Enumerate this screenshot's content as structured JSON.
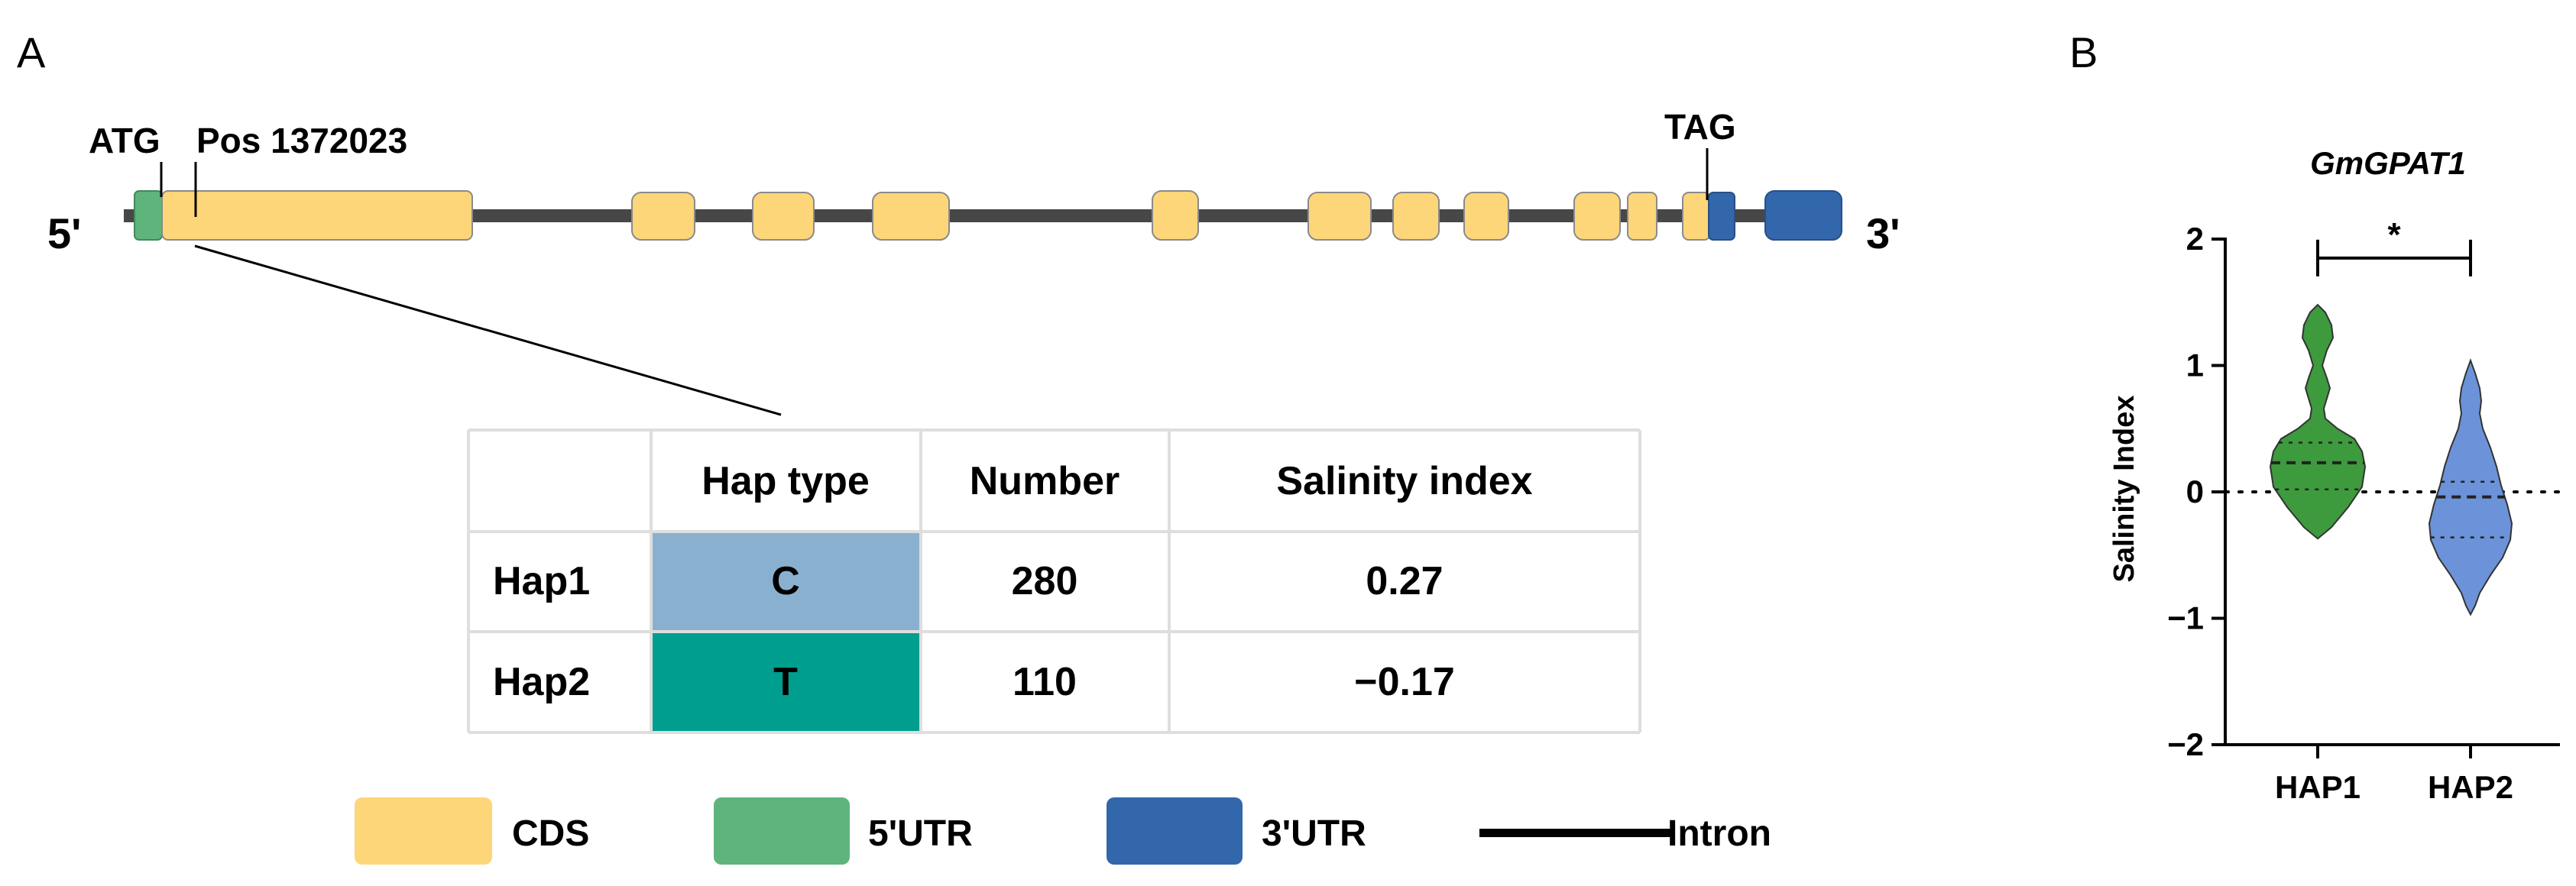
{
  "panel_labels": {
    "a": "A",
    "b": "B"
  },
  "gene": {
    "five_prime": "5'",
    "three_prime": "3'",
    "start_codon": "ATG",
    "stop_codon": "TAG",
    "snp_position": "Pos 1372023"
  },
  "haplotype_table": {
    "headers": [
      "",
      "Hap type",
      "Number",
      "Salinity index"
    ],
    "rows": [
      {
        "hap": "Hap1",
        "allele": "C",
        "number": "280",
        "salinity_index": "0.27"
      },
      {
        "hap": "Hap2",
        "allele": "T",
        "number": "110",
        "salinity_index": "−0.17"
      }
    ]
  },
  "legend": {
    "cds": "CDS",
    "utr5": "5'UTR",
    "utr3": "3'UTR",
    "intron": "Intron"
  },
  "colors": {
    "cds": "#fdd67a",
    "utr5": "#5fb47c",
    "utr3": "#3267ab",
    "intron": "#474747",
    "hap1_cell": "#8ab0d0",
    "hap2_cell": "#009e8e",
    "hap1_violin": "#3d9a3d",
    "hap2_violin": "#6c93d9"
  },
  "chart_data": {
    "type": "violin",
    "title": "GmGPAT1",
    "xlabel": "",
    "ylabel": "Salinity Index",
    "categories": [
      "HAP1",
      "HAP2"
    ],
    "ylim": [
      -2,
      2
    ],
    "yticks": [
      2,
      1,
      0,
      -1,
      -2
    ],
    "ytick_labels": [
      "2",
      "1",
      "0",
      "−1",
      "−2"
    ],
    "reference_line": 0,
    "significance": {
      "between": [
        "HAP1",
        "HAP2"
      ],
      "label": "*"
    },
    "series": [
      {
        "category": "HAP1",
        "min": -0.37,
        "max": 1.48,
        "q1": 0.02,
        "median": 0.23,
        "q3": 0.39
      },
      {
        "category": "HAP2",
        "min": -0.97,
        "max": 1.04,
        "q1": -0.36,
        "median": -0.04,
        "q3": 0.08
      }
    ]
  }
}
